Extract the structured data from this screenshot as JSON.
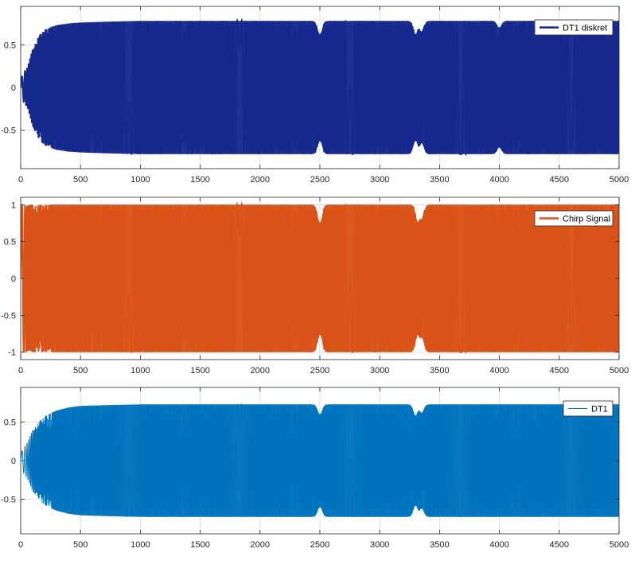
{
  "chart_data": [
    {
      "type": "line",
      "title": "",
      "xlabel": "",
      "ylabel": "",
      "xlim": [
        0,
        5000
      ],
      "ylim": [
        -0.95,
        0.95
      ],
      "xticks": [
        0,
        500,
        1000,
        1500,
        2000,
        2500,
        3000,
        3500,
        4000,
        4500,
        5000
      ],
      "yticks": [
        -0.5,
        0,
        0.5
      ],
      "ytick_labels": [
        "-0.5",
        "0",
        "0.5"
      ],
      "grid": true,
      "legend_position": "top-right",
      "series": [
        {
          "name": "DT1 diskret",
          "color": "#15298c",
          "line_width": "thick",
          "envelope": {
            "x": [
              0,
              60,
              100,
              150,
              200,
              300,
              400,
              500,
              700,
              1000,
              2000,
              3000,
              4000,
              4700,
              4800,
              4900,
              5000
            ],
            "amplitude": [
              0.1,
              0.25,
              0.45,
              0.6,
              0.68,
              0.73,
              0.75,
              0.76,
              0.77,
              0.78,
              0.78,
              0.78,
              0.78,
              0.78,
              0.78,
              0.78,
              0.78
            ]
          },
          "dips": [
            {
              "x": 2500,
              "amplitude": 0.62
            },
            {
              "x": 3300,
              "amplitude": 0.62
            },
            {
              "x": 3350,
              "amplitude": 0.65
            },
            {
              "x": 4000,
              "amplitude": 0.7
            }
          ]
        }
      ]
    },
    {
      "type": "line",
      "title": "",
      "xlabel": "",
      "ylabel": "",
      "xlim": [
        0,
        5000
      ],
      "ylim": [
        -1.1,
        1.1
      ],
      "xticks": [
        0,
        500,
        1000,
        1500,
        2000,
        2500,
        3000,
        3500,
        4000,
        4500,
        5000
      ],
      "yticks": [
        -1,
        -0.5,
        0,
        0.5,
        1
      ],
      "ytick_labels": [
        "-1",
        "-0.5",
        "0",
        "0.5",
        "1"
      ],
      "grid": true,
      "legend_position": "top-right",
      "series": [
        {
          "name": "Chirp Signal",
          "color": "#d95319",
          "line_width": "thick",
          "envelope": {
            "x": [
              0,
              5000
            ],
            "amplitude": [
              1,
              1
            ]
          },
          "dips": [
            {
              "x": 2500,
              "amplitude": 0.75
            },
            {
              "x": 3320,
              "amplitude": 0.75
            },
            {
              "x": 3350,
              "amplitude": 0.8
            }
          ]
        }
      ]
    },
    {
      "type": "line",
      "title": "",
      "xlabel": "",
      "ylabel": "",
      "xlim": [
        0,
        5000
      ],
      "ylim": [
        -0.95,
        0.95
      ],
      "xticks": [
        0,
        500,
        1000,
        1500,
        2000,
        2500,
        3000,
        3500,
        4000,
        4500,
        5000
      ],
      "yticks": [
        -0.5,
        0,
        0.5
      ],
      "ytick_labels": [
        "-0.5",
        "0",
        "0.5"
      ],
      "grid": true,
      "legend_position": "top-right",
      "series": [
        {
          "name": "DT1",
          "color": "#0072bd",
          "line_width": "thin",
          "envelope": {
            "x": [
              0,
              60,
              100,
              150,
              200,
              300,
              400,
              500,
              700,
              1000,
              2000,
              3000,
              4000,
              4700,
              4800,
              4900,
              5000
            ],
            "amplitude": [
              0.1,
              0.25,
              0.4,
              0.5,
              0.58,
              0.65,
              0.69,
              0.71,
              0.72,
              0.73,
              0.73,
              0.73,
              0.73,
              0.73,
              0.73,
              0.73,
              0.73
            ]
          },
          "dips": [
            {
              "x": 2500,
              "amplitude": 0.6
            },
            {
              "x": 3300,
              "amplitude": 0.58
            },
            {
              "x": 3350,
              "amplitude": 0.62
            }
          ]
        }
      ]
    }
  ]
}
